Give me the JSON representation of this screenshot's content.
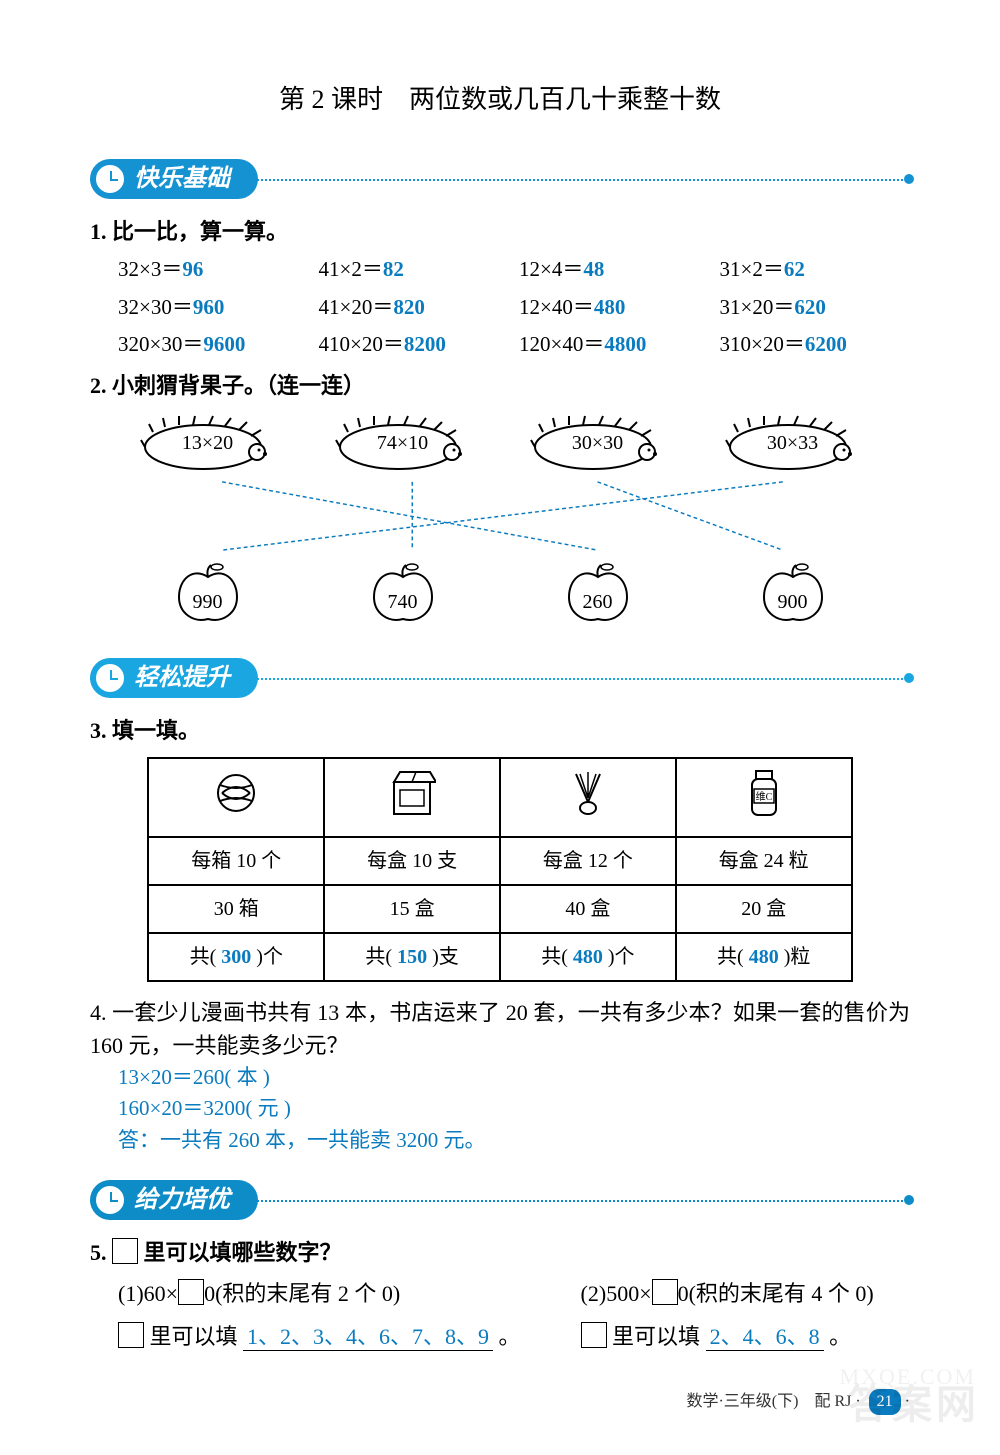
{
  "colors": {
    "answer": "#0a7bbf",
    "section1": "#1592d2",
    "section2": "#1aa6e0",
    "section3": "#0d8cc8"
  },
  "title": "第 2 课时　两位数或几百几十乘整十数",
  "sections": {
    "s1": "快乐基础",
    "s2": "轻松提升",
    "s3": "给力培优"
  },
  "q1": {
    "label": "1. 比一比，算一算。",
    "rows": [
      [
        {
          "expr": "32×3＝",
          "ans": "96"
        },
        {
          "expr": "41×2＝",
          "ans": "82"
        },
        {
          "expr": "12×4＝",
          "ans": "48"
        },
        {
          "expr": "31×2＝",
          "ans": "62"
        }
      ],
      [
        {
          "expr": "32×30＝",
          "ans": "960"
        },
        {
          "expr": "41×20＝",
          "ans": "820"
        },
        {
          "expr": "12×40＝",
          "ans": "480"
        },
        {
          "expr": "31×20＝",
          "ans": "620"
        }
      ],
      [
        {
          "expr": "320×30＝",
          "ans": "9600"
        },
        {
          "expr": "410×20＝",
          "ans": "8200"
        },
        {
          "expr": "120×40＝",
          "ans": "4800"
        },
        {
          "expr": "310×20＝",
          "ans": "6200"
        }
      ]
    ]
  },
  "q2": {
    "label": "2. 小刺猬背果子。（连一连）",
    "hedgehogs": [
      "13×20",
      "74×10",
      "30×30",
      "30×33"
    ],
    "apples": [
      "990",
      "740",
      "260",
      "900"
    ],
    "lines": {
      "stroke": "#0a7bbf",
      "dash": "4 3",
      "edges": [
        {
          "from": 0,
          "to": 2
        },
        {
          "from": 1,
          "to": 1
        },
        {
          "from": 2,
          "to": 3
        },
        {
          "from": 3,
          "to": 0
        }
      ],
      "topXs": [
        115,
        310,
        500,
        690
      ],
      "botXs": [
        115,
        310,
        500,
        690
      ]
    }
  },
  "q3": {
    "label": "3. 填一填。",
    "headers_icons": [
      "ball",
      "box",
      "shuttlecock",
      "jar"
    ],
    "row1": [
      "每箱 10 个",
      "每盒 10 支",
      "每盒 12 个",
      "每盒 24 粒"
    ],
    "row2": [
      "30 箱",
      "15 盒",
      "40 盒",
      "20 盒"
    ],
    "row3_prefix": [
      "共(",
      "共(",
      "共(",
      "共("
    ],
    "row3_ans": [
      "300",
      "150",
      "480",
      "480"
    ],
    "row3_suffix": [
      " )个",
      " )支",
      " )个",
      " )粒"
    ]
  },
  "q4": {
    "text": "4. 一套少儿漫画书共有 13 本，书店运来了 20 套，一共有多少本？如果一套的售价为 160 元，一共能卖多少元？",
    "sol": [
      "13×20＝260( 本 )",
      "160×20＝3200( 元 )",
      "答：一共有 260 本，一共能卖 3200 元。"
    ]
  },
  "q5": {
    "label_a": "5. ",
    "label_b": "里可以填哪些数字？",
    "p1_expr": "(1)60×",
    "p1_tail": "0(积的末尾有 2 个 0)",
    "p1_lead": "里可以填",
    "p1_ans": "1、2、3、4、6、7、8、9",
    "p2_expr": "(2)500×",
    "p2_tail": "0(积的末尾有 4 个 0)",
    "p2_lead": "里可以填",
    "p2_ans": "2、4、6、8"
  },
  "footer": {
    "text": "数学·三年级(下)　配 RJ",
    "page": "21"
  },
  "watermark": {
    "w1": "答案网",
    "w2": "MXQE.COM"
  }
}
